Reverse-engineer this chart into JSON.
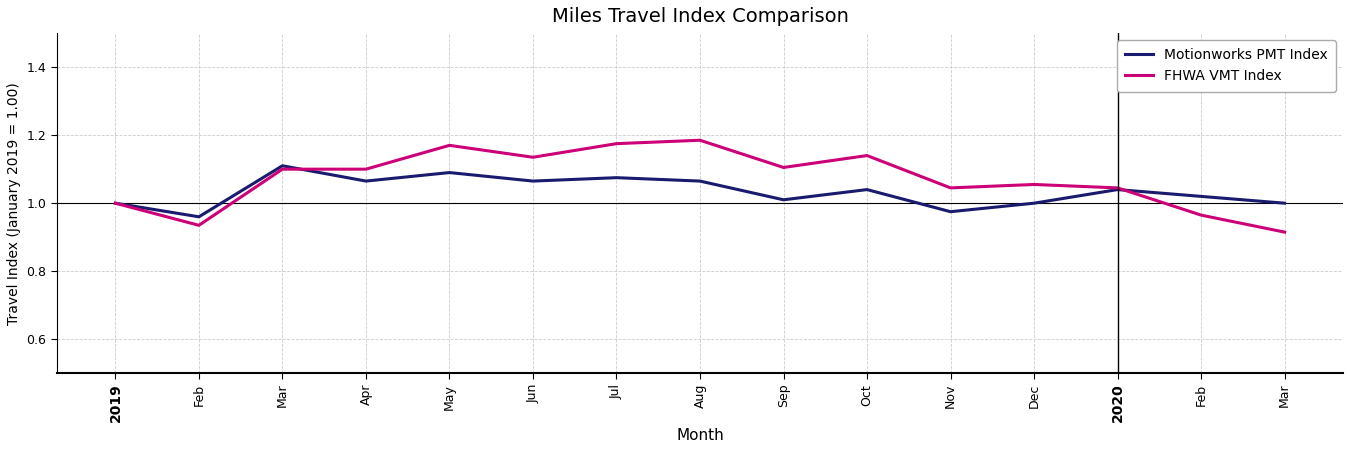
{
  "title": "Miles Travel Index Comparison",
  "xlabel": "Month",
  "ylabel": "Travel Index (January 2019 = 1.00)",
  "x_labels": [
    "2019",
    "Feb",
    "Mar",
    "Apr",
    "May",
    "Jun",
    "Jul",
    "Aug",
    "Sep",
    "Oct",
    "Nov",
    "Dec",
    "2020",
    "Feb",
    "Mar"
  ],
  "motionworks_pmt": [
    1.0,
    0.96,
    1.11,
    1.065,
    1.09,
    1.065,
    1.075,
    1.065,
    1.01,
    1.04,
    0.975,
    1.0,
    1.04,
    1.02,
    1.0
  ],
  "fhwa_vmt": [
    1.0,
    0.935,
    1.1,
    1.1,
    1.17,
    1.135,
    1.175,
    1.185,
    1.105,
    1.14,
    1.045,
    1.055,
    1.045,
    0.965,
    0.915
  ],
  "pmt_color": "#1a1a6e",
  "vmt_color": "#cc0077",
  "pmt_label": "Motionworks PMT Index",
  "vmt_label": "FHWA VMT Index",
  "ylim": [
    0.5,
    1.5
  ],
  "yticks": [
    0.6,
    0.8,
    1.0,
    1.2,
    1.4
  ],
  "grid_color": "#cccccc",
  "bg_color": "#ffffff",
  "vline_x": 12,
  "title_fontsize": 14,
  "label_fontsize": 11,
  "tick_fontsize": 9,
  "legend_fontsize": 10,
  "linewidth": 2.2
}
